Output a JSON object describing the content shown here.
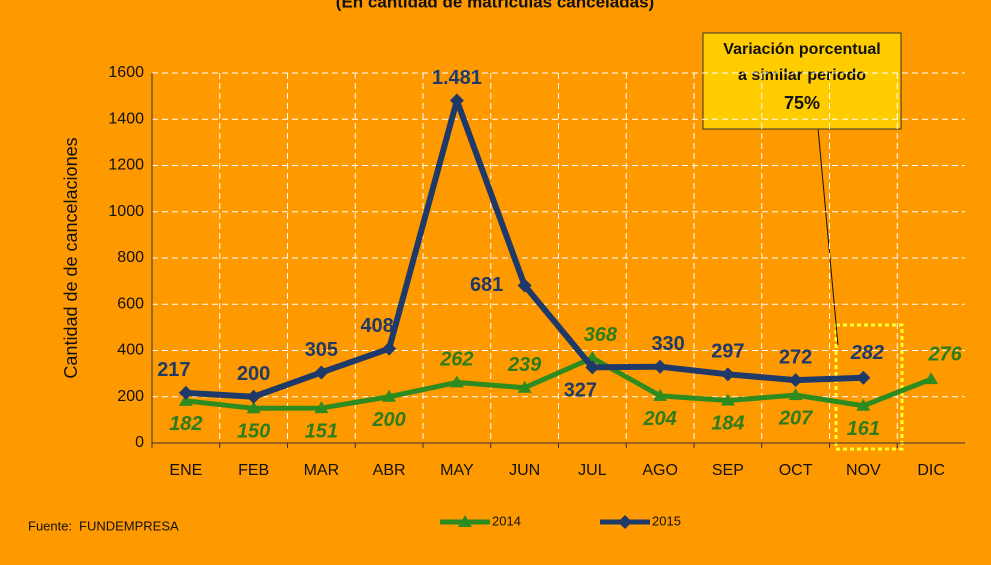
{
  "chart_data": {
    "type": "line",
    "title": "(En cantidad de matrículas canceladas)",
    "y_label": "Cantidad de de cancelaciones",
    "categories": [
      "ENE",
      "FEB",
      "MAR",
      "ABR",
      "MAY",
      "JUN",
      "JUL",
      "AGO",
      "SEP",
      "OCT",
      "NOV",
      "DIC"
    ],
    "series": [
      {
        "name": "2014",
        "color": "#2e8b1f",
        "values": [
          182,
          150,
          151,
          200,
          262,
          239,
          368,
          204,
          184,
          207,
          161,
          276
        ]
      },
      {
        "name": "2015",
        "color": "#1f3a68",
        "values": [
          217,
          200,
          305,
          408,
          1481,
          681,
          327,
          330,
          297,
          272,
          282,
          null
        ],
        "value_labels": [
          "217",
          "200",
          "305",
          "408",
          "1.481",
          "681",
          "327",
          "330",
          "297",
          "272",
          "282",
          null
        ]
      }
    ],
    "ylim": [
      0,
      1600
    ],
    "yticks": [
      0,
      200,
      400,
      600,
      800,
      1000,
      1200,
      1400,
      1600
    ],
    "grid": true,
    "annotation": {
      "lines": [
        "Variación porcentual",
        "a similar periodo"
      ],
      "value": "75%"
    },
    "source": {
      "label": "Fuente:",
      "text": "FUNDEMPRESA"
    }
  }
}
